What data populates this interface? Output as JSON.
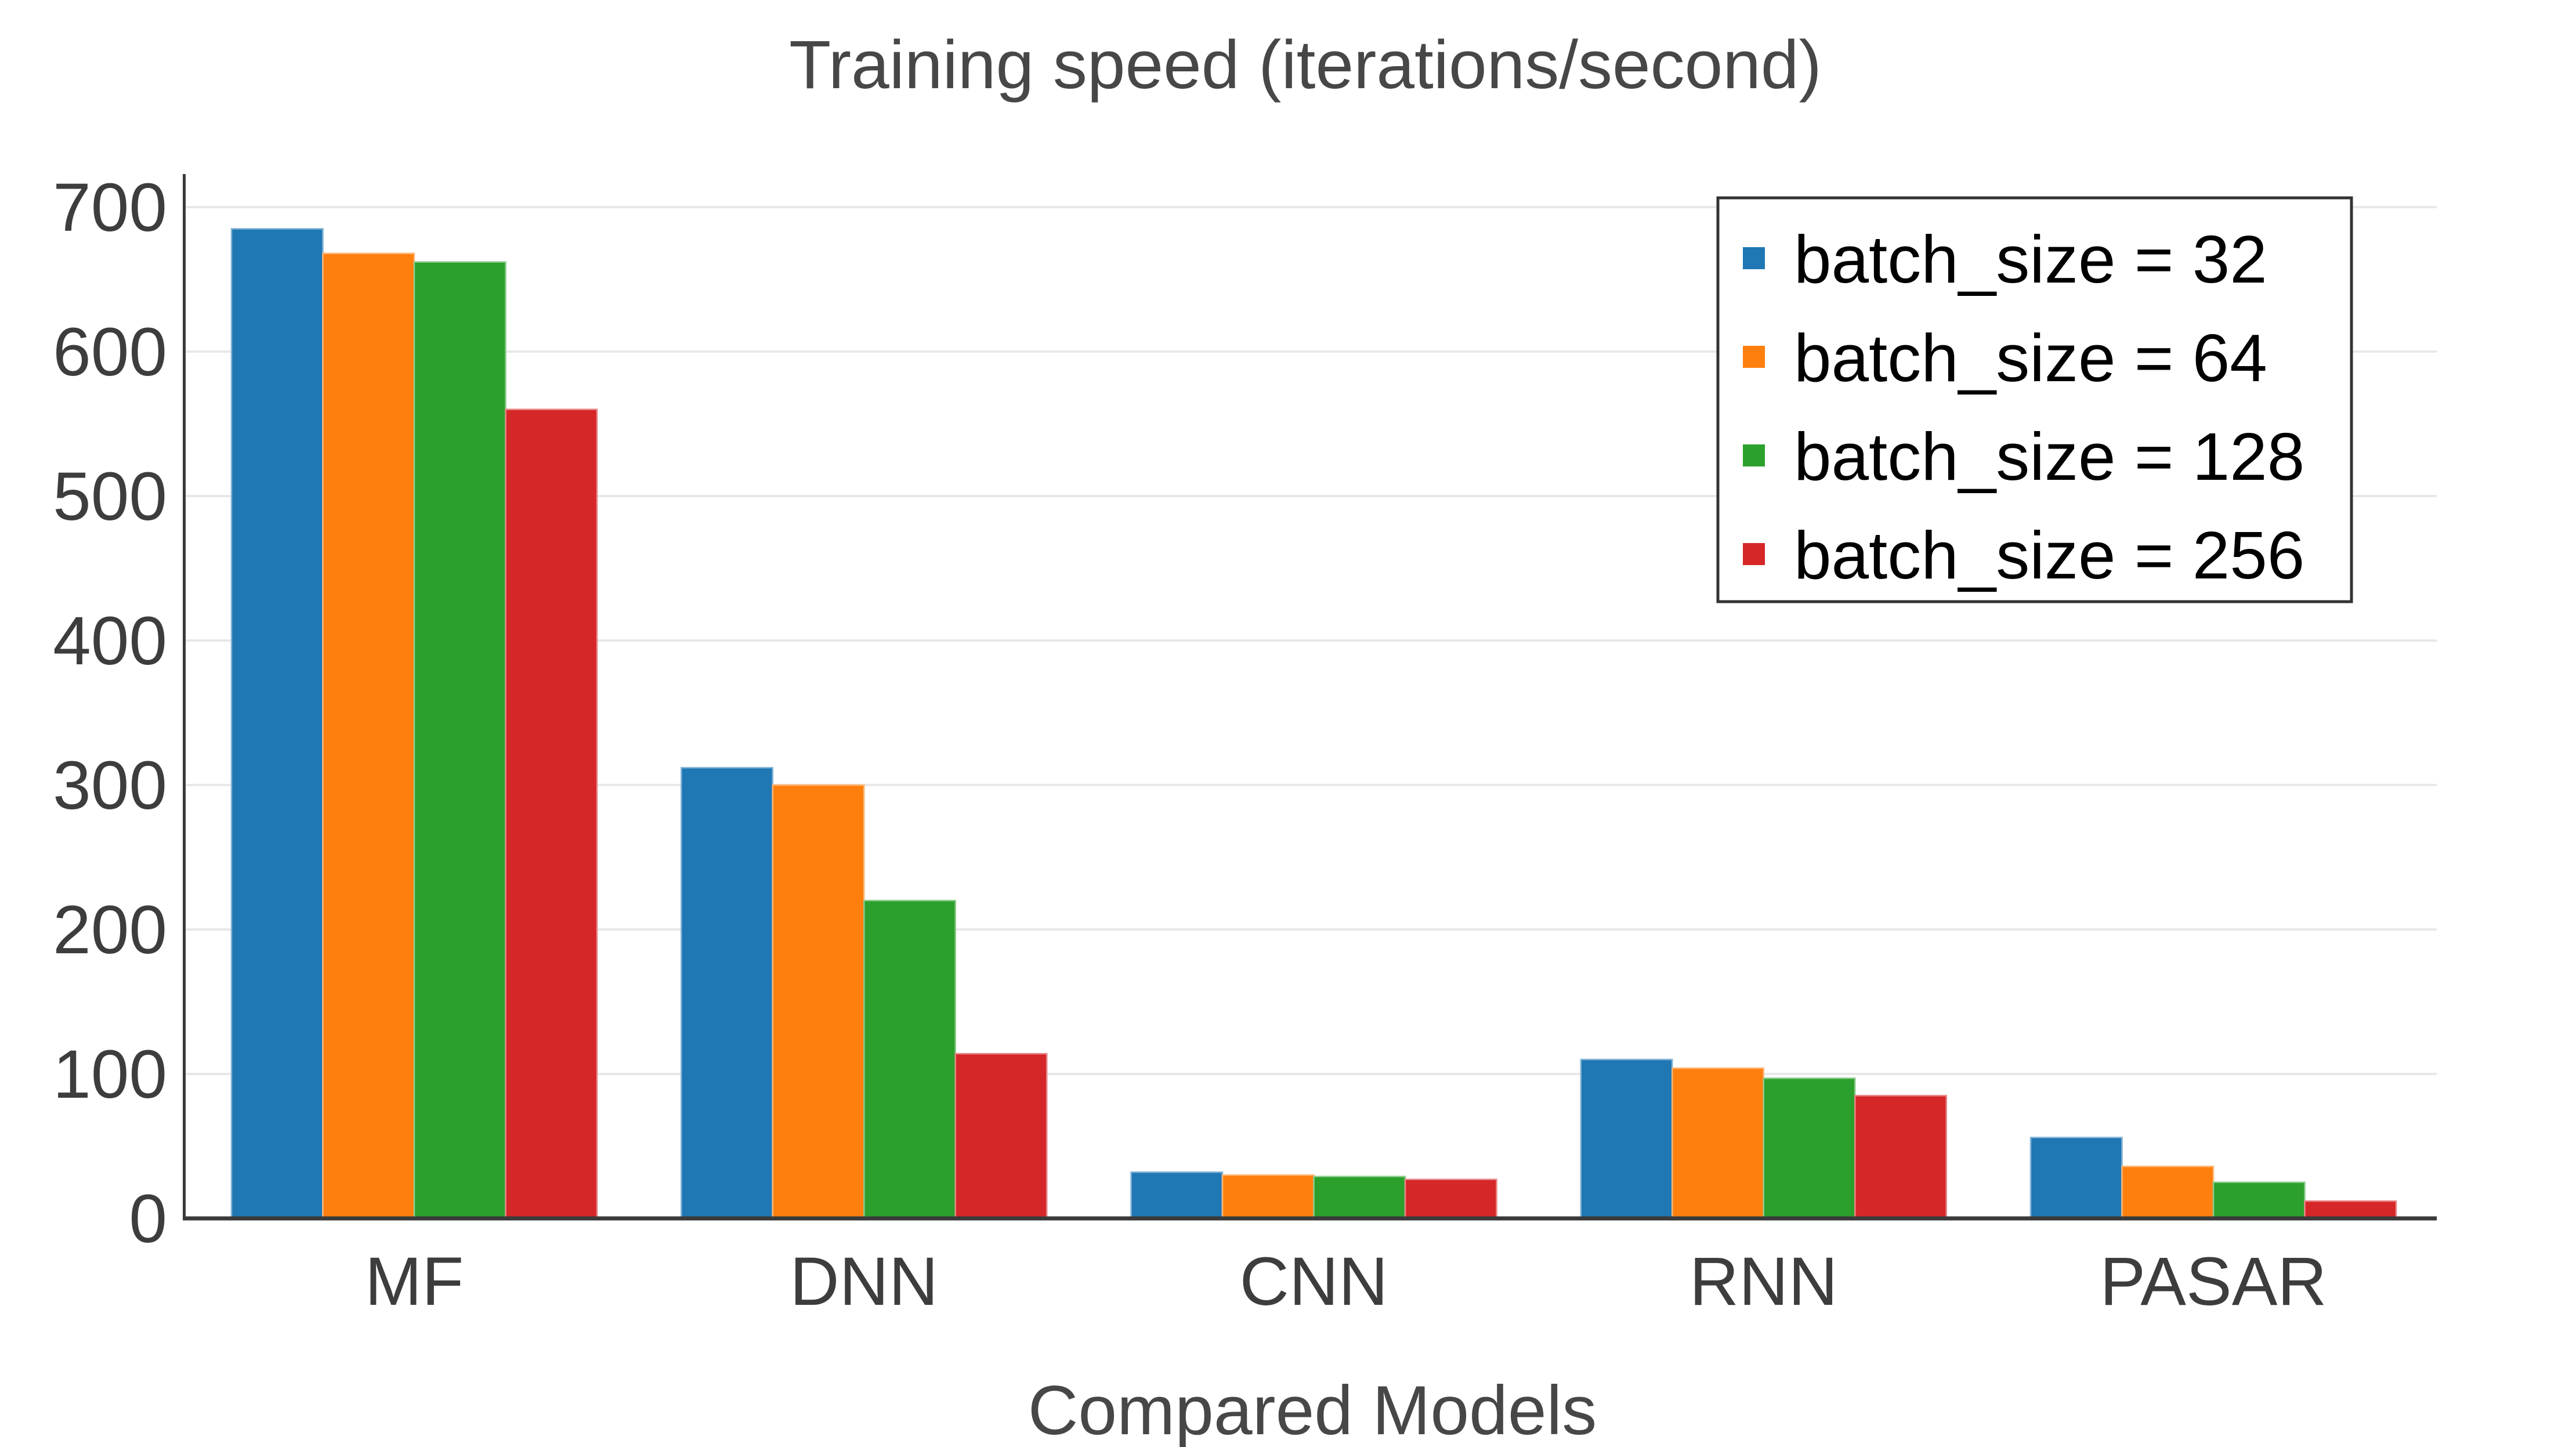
{
  "page": {
    "background_color": "#ffffff"
  },
  "chart_data": {
    "type": "bar",
    "title": "Training speed (iterations/second)",
    "xlabel": "Compared Models",
    "ylabel": "",
    "categories": [
      "MF",
      "DNN",
      "CNN",
      "RNN",
      "PASAR"
    ],
    "series": [
      {
        "name": "batch_size = 32",
        "color": "#1f77b4",
        "values": [
          685,
          312,
          32,
          110,
          56
        ]
      },
      {
        "name": "batch_size = 64",
        "color": "#ff7f0e",
        "values": [
          668,
          300,
          30,
          104,
          36
        ]
      },
      {
        "name": "batch_size = 128",
        "color": "#2ca02c",
        "values": [
          662,
          220,
          29,
          97,
          25
        ]
      },
      {
        "name": "batch_size = 256",
        "color": "#d62728",
        "values": [
          560,
          114,
          27,
          85,
          12
        ]
      }
    ],
    "ylim": [
      0,
      700
    ],
    "yticks": [
      0,
      100,
      200,
      300,
      400,
      500,
      600,
      700
    ],
    "grid": "horizontal",
    "legend_position": "top-right",
    "colors": {
      "grid_line": "#e8e8e8",
      "axis_spine": "#3a3a3a",
      "tick_label": "#3d3d3d",
      "title": "#474747",
      "axis_title": "#474747",
      "legend_text": "#000000",
      "legend_border": "#333333",
      "legend_background": "#ffffff"
    }
  }
}
